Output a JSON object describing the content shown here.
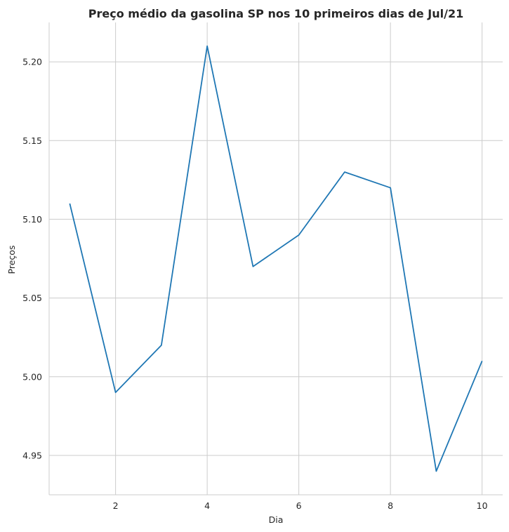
{
  "chart_data": {
    "type": "line",
    "title": "Preço médio da gasolina SP nos 10 primeiros dias de Jul/21",
    "xlabel": "Dia",
    "ylabel": "Preços",
    "x": [
      1,
      2,
      3,
      4,
      5,
      6,
      7,
      8,
      9,
      10
    ],
    "series": [
      {
        "values": [
          5.11,
          4.99,
          5.02,
          5.21,
          5.07,
          5.09,
          5.13,
          5.12,
          4.94,
          5.01
        ]
      }
    ],
    "xticks": [
      2,
      4,
      6,
      8,
      10
    ],
    "xtick_labels": [
      "2",
      "4",
      "6",
      "8",
      "10"
    ],
    "yticks": [
      4.95,
      5.0,
      5.05,
      5.1,
      5.15,
      5.2
    ],
    "ytick_labels": [
      "4.95",
      "5.00",
      "5.05",
      "5.10",
      "5.15",
      "5.20"
    ],
    "xlim": [
      0.55,
      10.45
    ],
    "ylim": [
      4.925,
      5.225
    ],
    "grid": true,
    "line_color": "#1f77b4"
  }
}
